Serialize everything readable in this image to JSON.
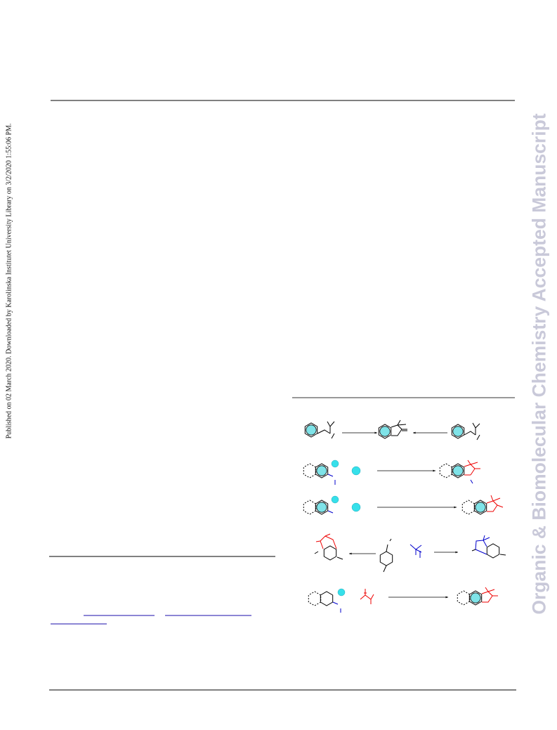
{
  "side_note": "Published on 02 March 2020. Downloaded by Karolinska Institutet University Library on 3/2/2020 1:55:06 PM.",
  "watermark": "Organic & Biomolecular Chemistry Accepted Manuscript"
}
